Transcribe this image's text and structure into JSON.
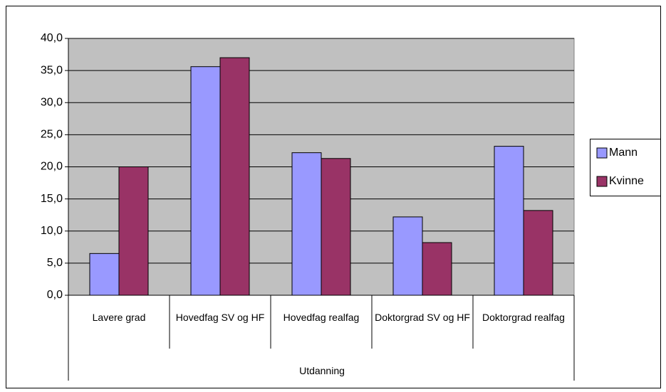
{
  "chart_data": {
    "type": "bar",
    "x_label": "Utdanning",
    "categories": [
      "Lavere grad",
      "Hovedfag SV og HF",
      "Hovedfag realfag",
      "Doktorgrad SV og HF",
      "Doktorgrad realfag"
    ],
    "series": [
      {
        "name": "Mann",
        "color": "#9999ff",
        "values": [
          6.5,
          35.6,
          22.2,
          12.2,
          23.2
        ]
      },
      {
        "name": "Kvinne",
        "color": "#993366",
        "values": [
          20.0,
          37.0,
          21.3,
          8.2,
          13.2
        ]
      }
    ],
    "ylim": [
      0,
      40
    ],
    "yticks": [
      {
        "value": 0,
        "label": "0,0"
      },
      {
        "value": 5,
        "label": "5,0"
      },
      {
        "value": 10,
        "label": "10,0"
      },
      {
        "value": 15,
        "label": "15,0"
      },
      {
        "value": 20,
        "label": "20,0"
      },
      {
        "value": 25,
        "label": "25,0"
      },
      {
        "value": 30,
        "label": "30,0"
      },
      {
        "value": 35,
        "label": "35,0"
      },
      {
        "value": 40,
        "label": "40,0"
      }
    ],
    "grid": true,
    "plot_background": "#c0c0c0",
    "legend": "right"
  }
}
